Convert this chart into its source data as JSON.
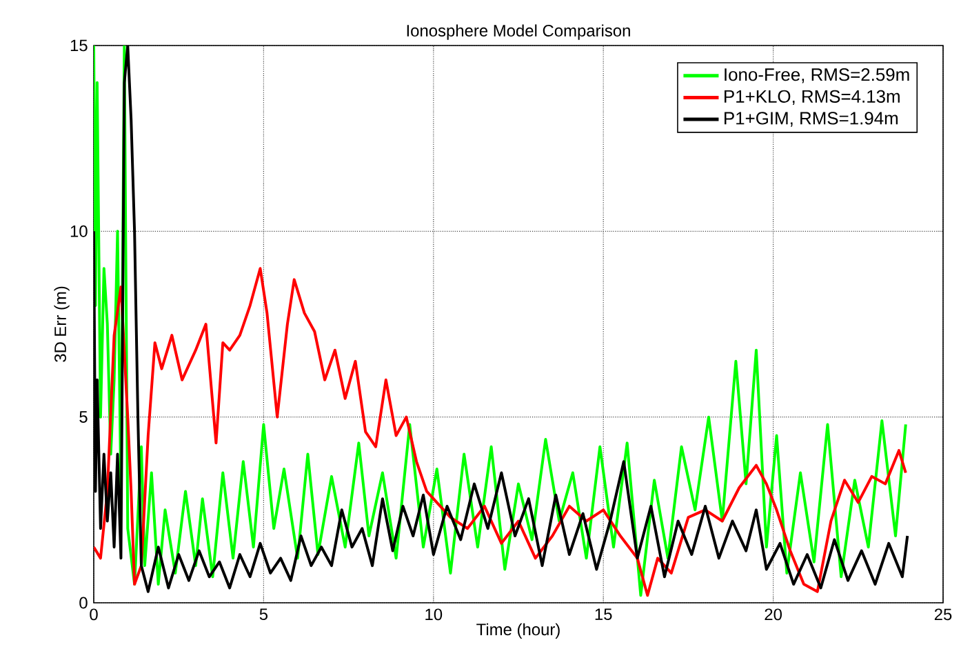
{
  "chart_data": {
    "type": "line",
    "title": "Ionosphere Model Comparison",
    "xlabel": "Time (hour)",
    "ylabel": "3D Err (m)",
    "xlim": [
      0,
      25
    ],
    "ylim": [
      0,
      15
    ],
    "xticks": [
      0,
      5,
      10,
      15,
      20,
      25
    ],
    "yticks": [
      0,
      5,
      10,
      15
    ],
    "grid": true,
    "legend": "top right",
    "line_style": "solid",
    "marker": "none",
    "series": [
      {
        "name": "Iono-Free, RMS=2.59m",
        "color": "#00ff00",
        "x": [
          0,
          0.05,
          0.1,
          0.2,
          0.3,
          0.4,
          0.5,
          0.6,
          0.7,
          0.8,
          0.9,
          1.0,
          1.2,
          1.4,
          1.5,
          1.7,
          1.9,
          2.1,
          2.4,
          2.7,
          3.0,
          3.2,
          3.5,
          3.8,
          4.1,
          4.4,
          4.7,
          5.0,
          5.3,
          5.6,
          6.0,
          6.3,
          6.6,
          7.0,
          7.4,
          7.8,
          8.1,
          8.5,
          8.9,
          9.3,
          9.7,
          10.1,
          10.5,
          10.9,
          11.3,
          11.7,
          12.1,
          12.5,
          12.9,
          13.3,
          13.7,
          14.1,
          14.5,
          14.9,
          15.3,
          15.7,
          16.1,
          16.5,
          16.9,
          17.3,
          17.7,
          18.1,
          18.5,
          18.9,
          19.2,
          19.5,
          19.8,
          20.1,
          20.4,
          20.8,
          21.2,
          21.6,
          22.0,
          22.4,
          22.8,
          23.2,
          23.6,
          23.9
        ],
        "values": [
          15,
          8,
          14,
          5,
          9,
          7.5,
          4,
          6,
          10,
          3,
          15,
          2,
          0.5,
          4.2,
          1,
          3.5,
          0.5,
          2.5,
          0.8,
          3,
          1,
          2.8,
          0.7,
          3.5,
          1.2,
          3.8,
          1.5,
          4.8,
          2,
          3.6,
          1.2,
          4,
          1.3,
          3.4,
          1.5,
          4.3,
          1.8,
          3.5,
          1.2,
          4.8,
          1.5,
          3.6,
          0.8,
          4,
          1.5,
          4.2,
          0.9,
          3.2,
          1.7,
          4.4,
          2.2,
          3.5,
          1.2,
          4.2,
          1.5,
          4.3,
          0.2,
          3.3,
          1.2,
          4.2,
          2.5,
          5,
          2.2,
          6.5,
          3.2,
          6.8,
          1.5,
          4.5,
          0.8,
          3.5,
          1.1,
          4.8,
          0.7,
          3.3,
          1.5,
          4.9,
          1.8,
          4.8
        ]
      },
      {
        "name": "P1+KLO, RMS=4.13m",
        "color": "#ff0000",
        "x": [
          0,
          0.2,
          0.4,
          0.6,
          0.8,
          1.0,
          1.1,
          1.2,
          1.4,
          1.6,
          1.8,
          2.0,
          2.3,
          2.6,
          3.0,
          3.3,
          3.6,
          3.8,
          4.0,
          4.3,
          4.6,
          4.9,
          5.1,
          5.4,
          5.7,
          5.9,
          6.2,
          6.5,
          6.8,
          7.1,
          7.4,
          7.7,
          8.0,
          8.3,
          8.6,
          8.9,
          9.2,
          9.5,
          9.8,
          10.1,
          10.5,
          11.0,
          11.5,
          12.0,
          12.5,
          13.0,
          13.5,
          14.0,
          14.5,
          15.0,
          15.5,
          16.0,
          16.3,
          16.6,
          17.0,
          17.5,
          18.0,
          18.5,
          19.0,
          19.5,
          19.8,
          20.1,
          20.5,
          20.9,
          21.3,
          21.7,
          22.1,
          22.5,
          22.9,
          23.3,
          23.7,
          23.9
        ],
        "values": [
          1.5,
          1.2,
          3,
          7.2,
          8.5,
          5,
          3,
          0.5,
          1,
          4.5,
          7,
          6.3,
          7.2,
          6,
          6.8,
          7.5,
          4.3,
          7,
          6.8,
          7.2,
          8,
          9,
          7.8,
          5,
          7.5,
          8.7,
          7.8,
          7.3,
          6,
          6.8,
          5.5,
          6.5,
          4.6,
          4.2,
          6,
          4.5,
          5,
          3.8,
          3,
          2.7,
          2.3,
          2,
          2.6,
          1.6,
          2.2,
          1.2,
          1.8,
          2.6,
          2.2,
          2.5,
          1.8,
          1.2,
          0.2,
          1.2,
          0.8,
          2.3,
          2.5,
          2.2,
          3.1,
          3.7,
          3.2,
          2.5,
          1.4,
          0.5,
          0.3,
          2.2,
          3.3,
          2.7,
          3.4,
          3.2,
          4.1,
          3.5
        ]
      },
      {
        "name": "P1+GIM, RMS=1.94m",
        "color": "#000000",
        "x": [
          0,
          0.05,
          0.1,
          0.2,
          0.3,
          0.4,
          0.5,
          0.6,
          0.7,
          0.8,
          0.9,
          1.0,
          1.1,
          1.2,
          1.3,
          1.4,
          1.6,
          1.9,
          2.2,
          2.5,
          2.8,
          3.1,
          3.4,
          3.7,
          4.0,
          4.3,
          4.6,
          4.9,
          5.2,
          5.5,
          5.8,
          6.1,
          6.4,
          6.7,
          7.0,
          7.3,
          7.6,
          7.9,
          8.2,
          8.5,
          8.8,
          9.1,
          9.4,
          9.7,
          10.0,
          10.4,
          10.8,
          11.2,
          11.6,
          12.0,
          12.4,
          12.8,
          13.2,
          13.6,
          14.0,
          14.4,
          14.8,
          15.2,
          15.6,
          16.0,
          16.4,
          16.8,
          17.2,
          17.6,
          18.0,
          18.4,
          18.8,
          19.2,
          19.5,
          19.8,
          20.2,
          20.6,
          21.0,
          21.4,
          21.8,
          22.2,
          22.6,
          23.0,
          23.4,
          23.8,
          23.95
        ],
        "values": [
          10,
          3,
          6,
          2,
          4,
          2.2,
          3.5,
          1.5,
          4,
          1.2,
          14,
          15,
          13,
          10,
          5,
          1,
          0.3,
          1.5,
          0.4,
          1.3,
          0.6,
          1.4,
          0.7,
          1.1,
          0.4,
          1.3,
          0.7,
          1.6,
          0.8,
          1.2,
          0.6,
          1.8,
          1,
          1.5,
          1,
          2.5,
          1.5,
          2,
          1,
          2.8,
          1.4,
          2.6,
          1.8,
          2.9,
          1.3,
          2.6,
          1.7,
          3.2,
          2,
          3.5,
          1.8,
          2.8,
          1,
          2.9,
          1.3,
          2.4,
          0.9,
          2.2,
          3.8,
          1.2,
          2.6,
          0.7,
          2.2,
          1.3,
          2.6,
          1.2,
          2.2,
          1.4,
          2.5,
          0.9,
          1.6,
          0.5,
          1.3,
          0.4,
          1.7,
          0.6,
          1.4,
          0.5,
          1.6,
          0.7,
          1.8
        ]
      }
    ]
  }
}
